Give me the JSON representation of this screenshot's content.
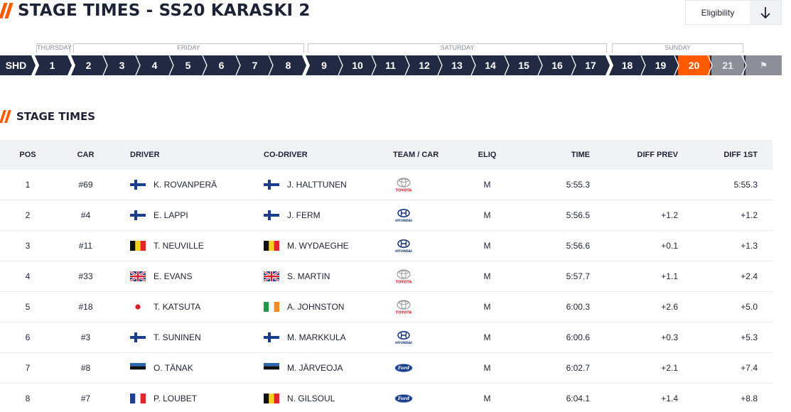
{
  "page": {
    "title": "STAGE TIMES - SS20 KARASKI 2",
    "eligibility_label": "Eligibility",
    "download_icon": "download-arrow-icon"
  },
  "days": [
    {
      "label": "THURSDAY"
    },
    {
      "label": "FRIDAY"
    },
    {
      "label": "SATURDAY"
    },
    {
      "label": "SUNDAY"
    }
  ],
  "stages": [
    {
      "label": "SHD"
    },
    {
      "label": "1"
    },
    {
      "label": "2"
    },
    {
      "label": "3"
    },
    {
      "label": "4"
    },
    {
      "label": "5"
    },
    {
      "label": "6"
    },
    {
      "label": "7"
    },
    {
      "label": "8"
    },
    {
      "label": "9"
    },
    {
      "label": "10"
    },
    {
      "label": "11"
    },
    {
      "label": "12"
    },
    {
      "label": "13"
    },
    {
      "label": "14"
    },
    {
      "label": "15"
    },
    {
      "label": "16"
    },
    {
      "label": "17"
    },
    {
      "label": "18"
    },
    {
      "label": "19"
    },
    {
      "label": "20",
      "state": "active"
    },
    {
      "label": "21",
      "state": "upcoming"
    },
    {
      "label": "⚑",
      "state": "finish"
    }
  ],
  "section": {
    "title": "STAGE TIMES"
  },
  "table": {
    "headers": {
      "pos": "POS",
      "car": "CAR",
      "driver": "DRIVER",
      "codriver": "CO-DRIVER",
      "team": "TEAM / CAR",
      "eliq": "ELIQ",
      "time": "TIME",
      "diff_prev": "DIFF PREV",
      "diff_1st": "DIFF 1ST"
    },
    "rows": [
      {
        "pos": "1",
        "car": "#69",
        "driver": "K. ROVANPERÄ",
        "driver_flag": "FI",
        "codriver": "J. HALTTUNEN",
        "codriver_flag": "FI",
        "team": "toyota",
        "eliq": "M",
        "time": "5:55.3",
        "diff_prev": "",
        "diff_1st": "5:55.3"
      },
      {
        "pos": "2",
        "car": "#4",
        "driver": "E. LAPPI",
        "driver_flag": "FI",
        "codriver": "J. FERM",
        "codriver_flag": "FI",
        "team": "hyundai",
        "eliq": "M",
        "time": "5:56.5",
        "diff_prev": "+1.2",
        "diff_1st": "+1.2"
      },
      {
        "pos": "3",
        "car": "#11",
        "driver": "T. NEUVILLE",
        "driver_flag": "BE",
        "codriver": "M. WYDAEGHE",
        "codriver_flag": "BE",
        "team": "hyundai",
        "eliq": "M",
        "time": "5:56.6",
        "diff_prev": "+0.1",
        "diff_1st": "+1.3"
      },
      {
        "pos": "4",
        "car": "#33",
        "driver": "E. EVANS",
        "driver_flag": "GB",
        "codriver": "S. MARTIN",
        "codriver_flag": "GB",
        "team": "toyota",
        "eliq": "M",
        "time": "5:57.7",
        "diff_prev": "+1.1",
        "diff_1st": "+2.4"
      },
      {
        "pos": "5",
        "car": "#18",
        "driver": "T. KATSUTA",
        "driver_flag": "JP",
        "codriver": "A. JOHNSTON",
        "codriver_flag": "IE",
        "team": "toyota",
        "eliq": "M",
        "time": "6:00.3",
        "diff_prev": "+2.6",
        "diff_1st": "+5.0"
      },
      {
        "pos": "6",
        "car": "#3",
        "driver": "T. SUNINEN",
        "driver_flag": "FI",
        "codriver": "M. MARKKULA",
        "codriver_flag": "FI",
        "team": "hyundai",
        "eliq": "M",
        "time": "6:00.6",
        "diff_prev": "+0.3",
        "diff_1st": "+5.3"
      },
      {
        "pos": "7",
        "car": "#8",
        "driver": "O. TÄNAK",
        "driver_flag": "EE",
        "codriver": "M. JÄRVEOJA",
        "codriver_flag": "EE",
        "team": "ford",
        "eliq": "M",
        "time": "6:02.7",
        "diff_prev": "+2.1",
        "diff_1st": "+7.4"
      },
      {
        "pos": "8",
        "car": "#7",
        "driver": "P. LOUBET",
        "driver_flag": "FR",
        "codriver": "N. GILSOUL",
        "codriver_flag": "BE",
        "team": "ford",
        "eliq": "M",
        "time": "6:04.1",
        "diff_prev": "+1.4",
        "diff_1st": "+8.8"
      }
    ]
  },
  "colors": {
    "accent": "#ff5a00",
    "navy": "#222a43",
    "upcoming": "#8c8f98",
    "header_bg": "#f1f2f5"
  }
}
